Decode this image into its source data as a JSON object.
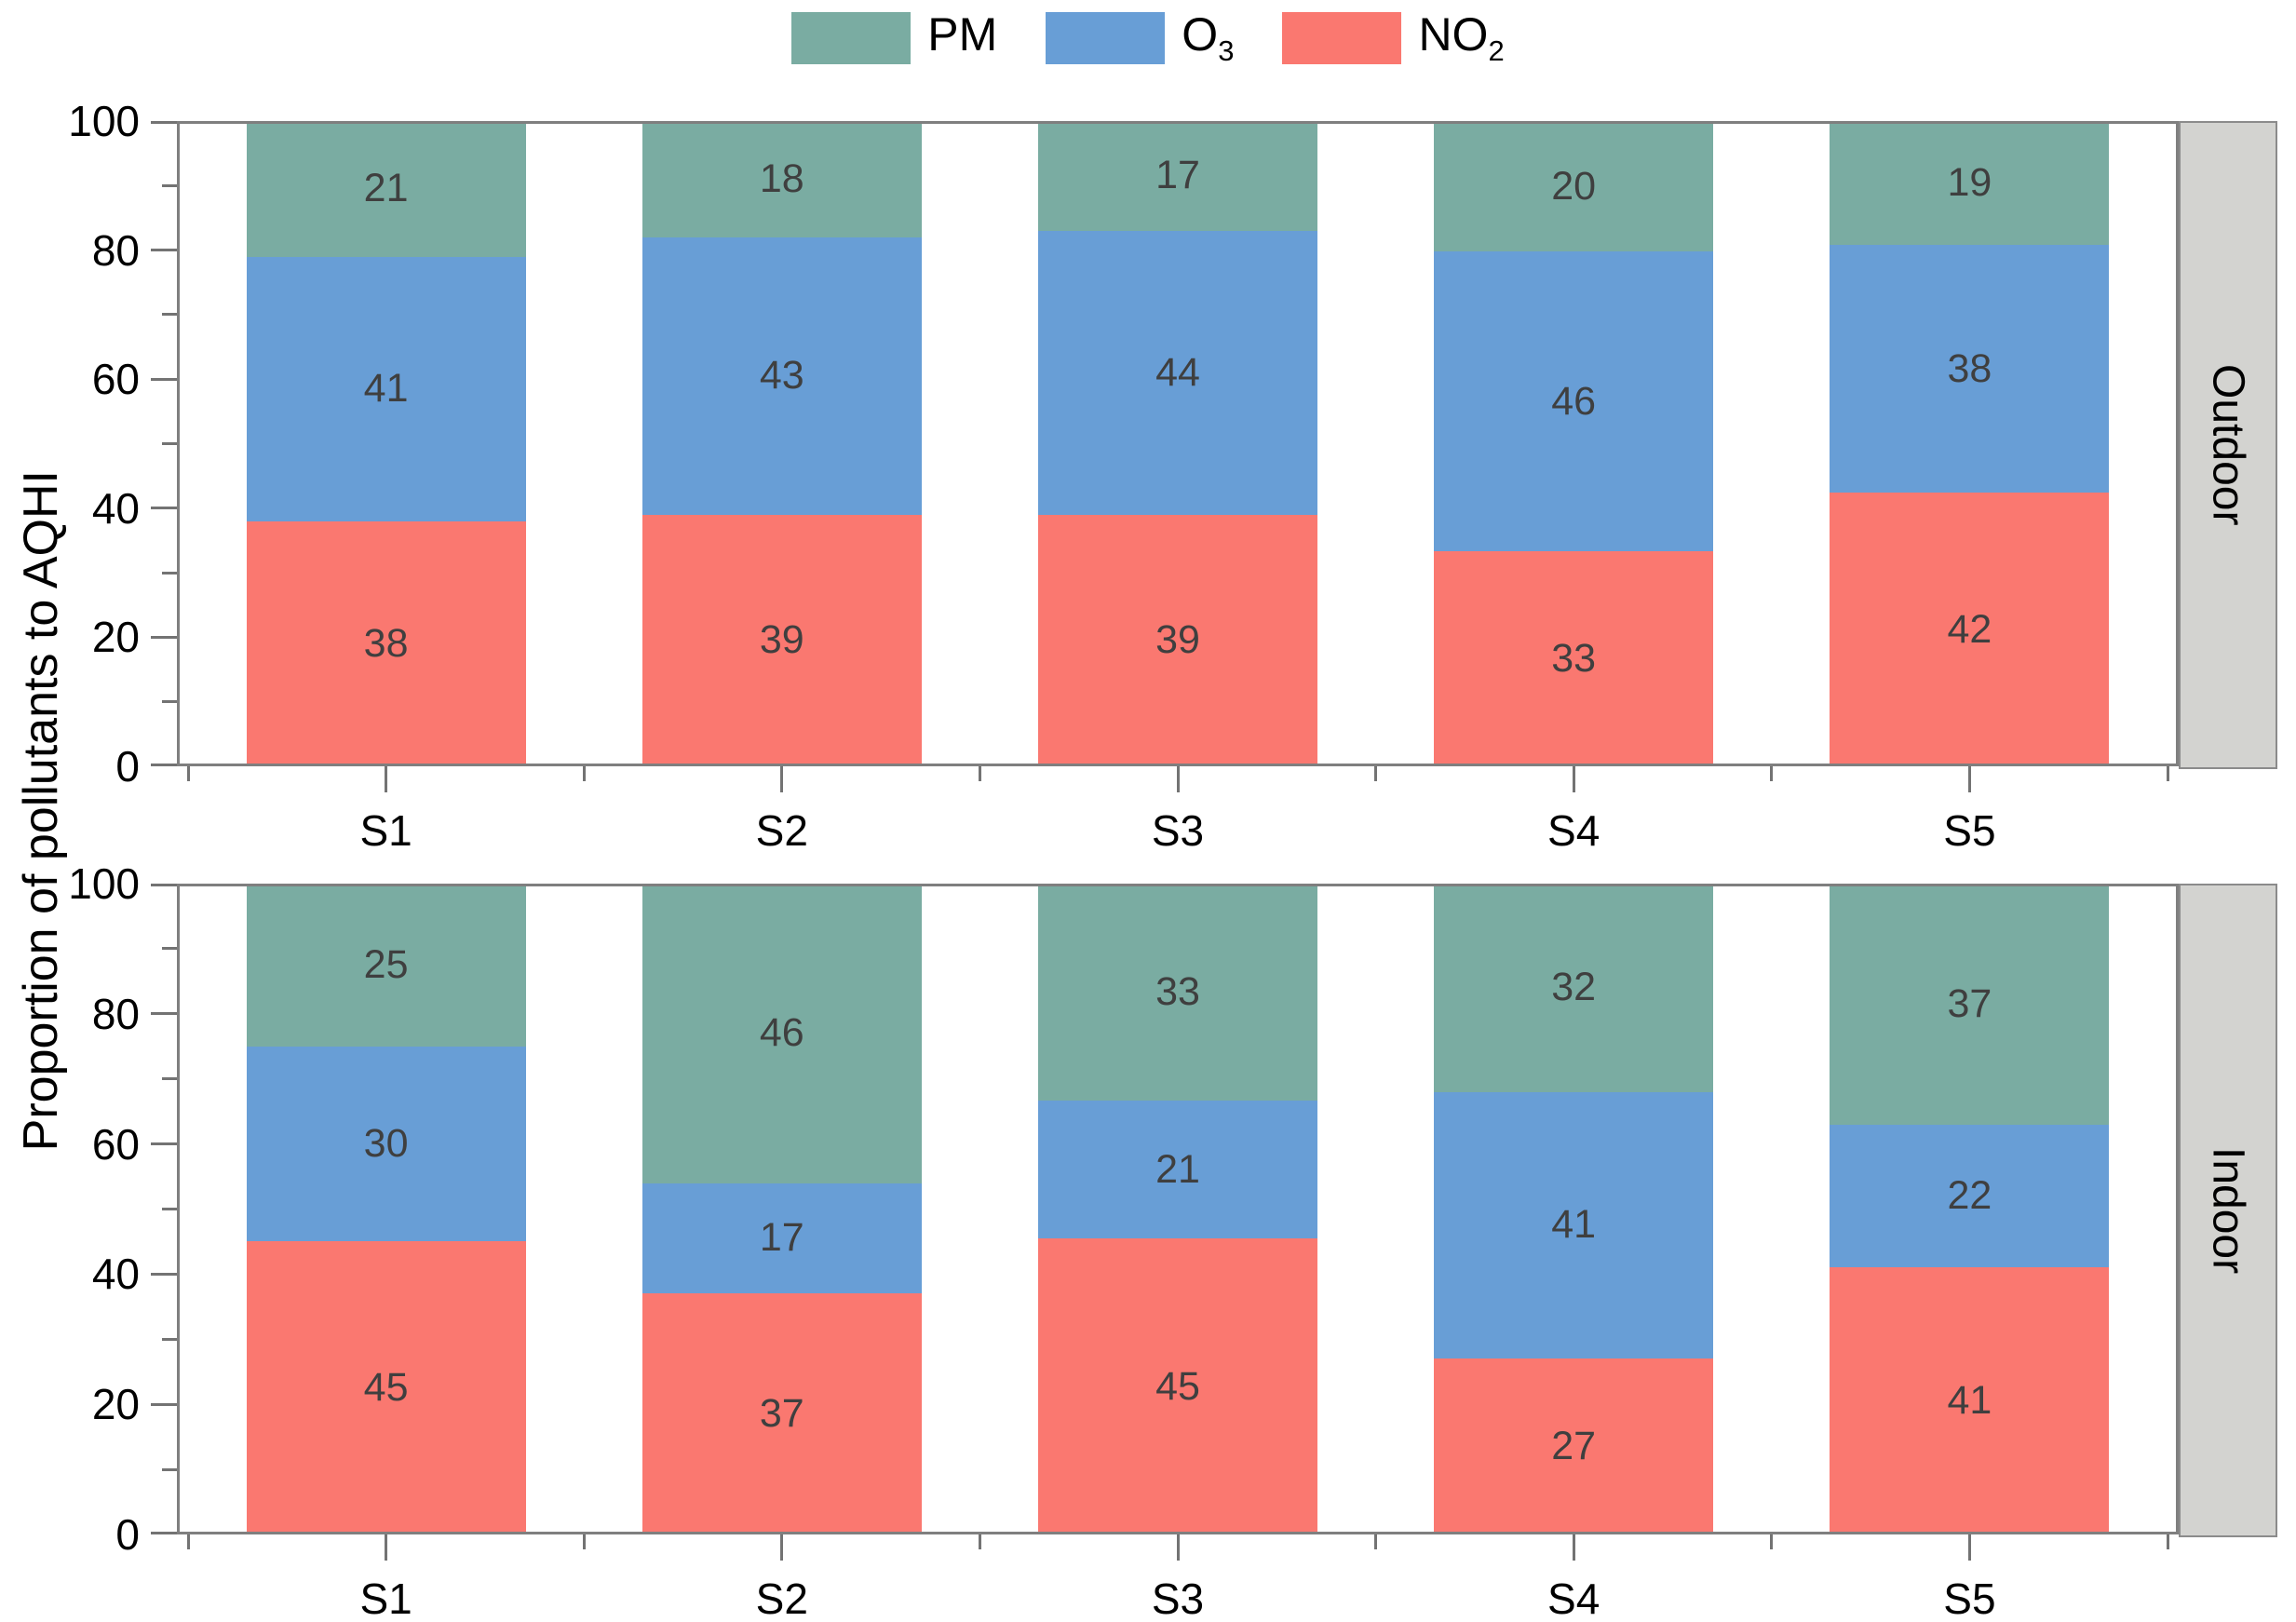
{
  "figure": {
    "ylabel": "Proportion of pollutants to AQHI",
    "colors": {
      "PM": "#7aaca2",
      "O3": "#689ed6",
      "NO2": "#fa7870",
      "axis": "#7f7f7f",
      "strip_fill": "#d3d3d0",
      "strip_border": "#8b8b8b",
      "value_label": "#3f3f3f"
    },
    "legend": [
      {
        "name": "PM",
        "base": "PM",
        "sub": ""
      },
      {
        "name": "O3",
        "base": "O",
        "sub": "3"
      },
      {
        "name": "NO2",
        "base": "NO",
        "sub": "2"
      }
    ]
  },
  "chart_data": [
    {
      "type": "bar",
      "stacked": true,
      "panel_label": "Outdoor",
      "title": "",
      "xlabel": "",
      "ylabel": "Proportion of pollutants to AQHI",
      "categories": [
        "S1",
        "S2",
        "S3",
        "S4",
        "S5"
      ],
      "series": [
        {
          "name": "NO2",
          "values": [
            38,
            39,
            39,
            33,
            42
          ]
        },
        {
          "name": "O3",
          "values": [
            41,
            43,
            44,
            46,
            38
          ]
        },
        {
          "name": "PM",
          "values": [
            21,
            18,
            17,
            20,
            19
          ]
        }
      ],
      "legend": [
        "PM",
        "O₃",
        "NO₂"
      ],
      "ylim": [
        0,
        100
      ],
      "yticks": [
        0,
        20,
        40,
        60,
        80,
        100
      ],
      "yticks_minor": [
        10,
        30,
        50,
        70,
        90
      ],
      "grid": false,
      "legend_position": "top-center"
    },
    {
      "type": "bar",
      "stacked": true,
      "panel_label": "Indoor",
      "title": "",
      "xlabel": "",
      "ylabel": "Proportion of pollutants to AQHI",
      "categories": [
        "S1",
        "S2",
        "S3",
        "S4",
        "S5"
      ],
      "series": [
        {
          "name": "NO2",
          "values": [
            45,
            37,
            45,
            27,
            41
          ]
        },
        {
          "name": "O3",
          "values": [
            30,
            17,
            21,
            41,
            22
          ]
        },
        {
          "name": "PM",
          "values": [
            25,
            46,
            33,
            32,
            37
          ]
        }
      ],
      "legend": [
        "PM",
        "O₃",
        "NO₂"
      ],
      "ylim": [
        0,
        100
      ],
      "yticks": [
        0,
        20,
        40,
        60,
        80,
        100
      ],
      "yticks_minor": [
        10,
        30,
        50,
        70,
        90
      ],
      "grid": false,
      "legend_position": "top-center"
    }
  ]
}
